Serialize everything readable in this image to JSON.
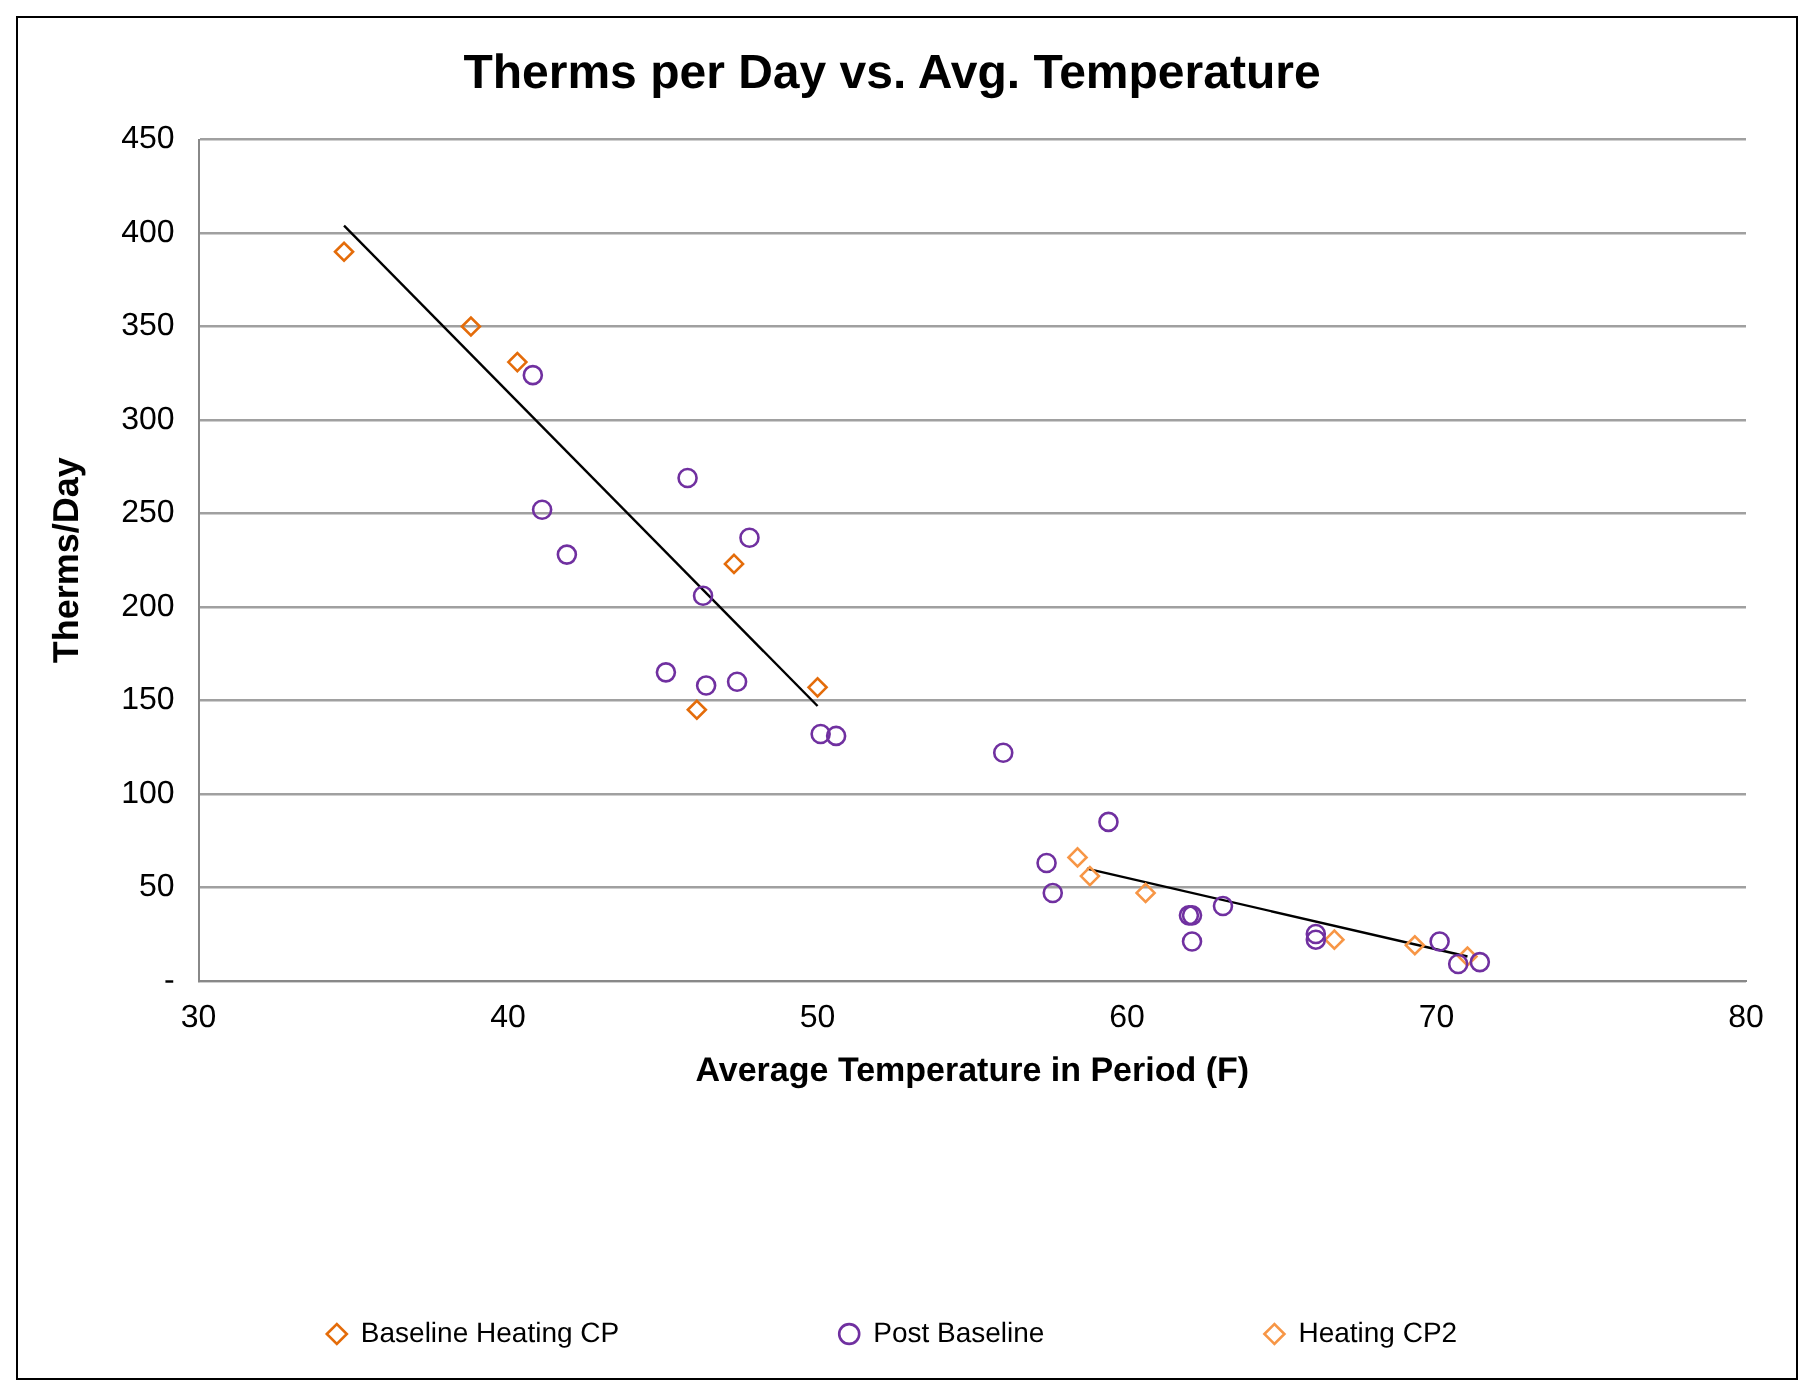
{
  "chart_data": {
    "type": "scatter",
    "title": "Therms per Day vs. Avg. Temperature",
    "xlabel": "Average Temperature in Period (F)",
    "ylabel": "Therms/Day",
    "xlim": [
      30,
      80
    ],
    "xticks": [
      30,
      40,
      50,
      60,
      70,
      80
    ],
    "ylim": [
      0,
      450
    ],
    "yticks": [
      {
        "value": 0,
        "label": "-"
      },
      50,
      100,
      150,
      200,
      250,
      300,
      350,
      400,
      450
    ],
    "grid": "y",
    "legend": "bottom",
    "series": [
      {
        "name": "Baseline Heating CP",
        "color": "#e46c0a",
        "marker": "diamond",
        "x": [
          34.7,
          38.8,
          40.3,
          47.3,
          46.1,
          50
        ],
        "values": [
          390,
          350,
          331,
          223,
          145,
          157
        ]
      },
      {
        "name": "Post Baseline",
        "color": "#7030a0",
        "marker": "circle",
        "x": [
          40.8,
          41.1,
          41.9,
          45.8,
          47.8,
          46.3,
          45.1,
          46.4,
          47.4,
          50.1,
          50.6,
          56,
          59.4,
          57.4,
          57.6,
          62,
          62.1,
          63.1,
          62.1,
          66.1,
          66.1,
          70.1,
          70.7,
          71.4
        ],
        "values": [
          324,
          252,
          228,
          269,
          237,
          206,
          165,
          158,
          160,
          132,
          131,
          122,
          85,
          63,
          47,
          35,
          35,
          40,
          21,
          25,
          22,
          21,
          9,
          10
        ]
      },
      {
        "name": "Heating CP2",
        "color": "#f79646",
        "marker": "diamond",
        "x": [
          58.4,
          58.8,
          60.6,
          66.7,
          69.3,
          71
        ],
        "values": [
          66,
          56,
          47,
          22,
          19,
          13
        ]
      },
      {
        "type": "line",
        "color": "#000000",
        "marker": "none",
        "x": [
          34.7,
          50
        ],
        "values": [
          404,
          147
        ]
      },
      {
        "type": "line",
        "color": "#000000",
        "marker": "none",
        "x": [
          58.7,
          71
        ],
        "values": [
          60,
          13
        ]
      }
    ]
  }
}
